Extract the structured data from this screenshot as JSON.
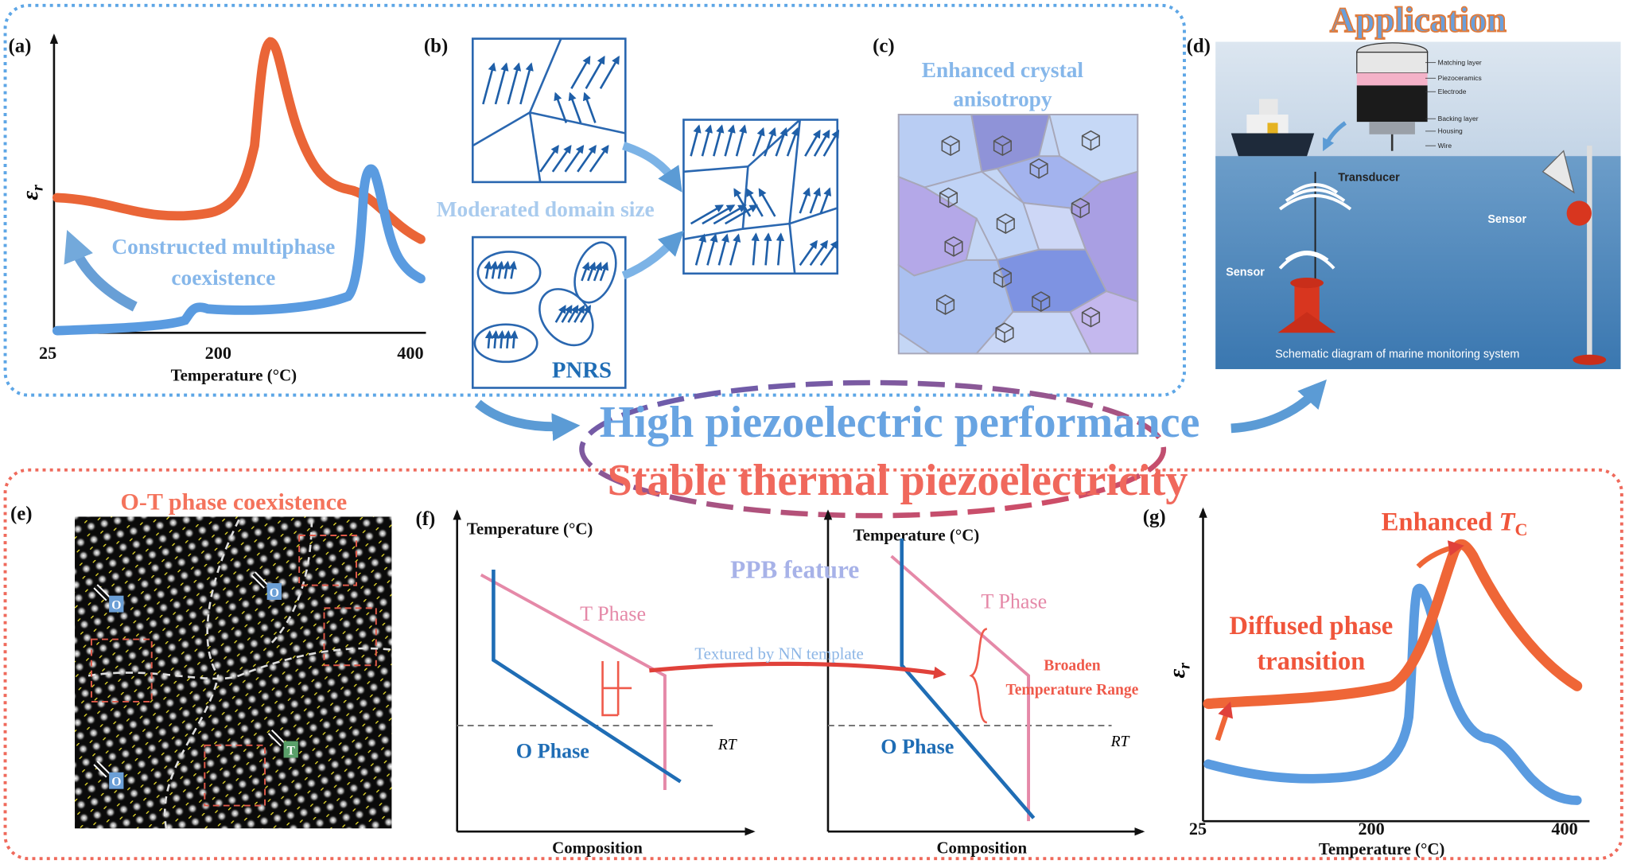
{
  "panels": {
    "a": {
      "label": "(a)",
      "y_axis": {
        "symbol": "ε",
        "subscript": "r"
      },
      "x_ticks": [
        "25",
        "200",
        "400"
      ],
      "x_axis_label": "Temperature (°C)",
      "annotation": [
        "Constructed multiphase",
        "coexistence"
      ]
    },
    "b": {
      "label": "(b)",
      "caption": "Moderated domain size",
      "region_label": "PNRS"
    },
    "c": {
      "label": "(c)",
      "caption": [
        "Enhanced crystal",
        "anisotropy"
      ]
    },
    "d": {
      "label": "(d)",
      "title": "Application",
      "transducer_layers": [
        "Matching layer",
        "Piezoceramics",
        "Electrode",
        "Backing layer",
        "Housing",
        "Wire"
      ],
      "callouts": [
        "Transducer",
        "Sensor",
        "Sensor"
      ],
      "caption": "Schematic diagram of marine monitoring system"
    },
    "e": {
      "label": "(e)",
      "title": "O-T phase coexistence",
      "markers": [
        "O",
        "O",
        "O",
        "T"
      ]
    },
    "f": {
      "label": "(f)",
      "feature": "PPB feature",
      "left": {
        "y_axis_label": "Temperature (°C)",
        "x_axis_label": "Composition",
        "upper_phase": "T Phase",
        "lower_phase": "O Phase",
        "reference": "RT"
      },
      "right": {
        "y_axis_label": "Temperature (°C)",
        "x_axis_label": "Composition",
        "upper_phase": "T Phase",
        "lower_phase": "O Phase",
        "reference": "RT"
      },
      "transition": "Textured by NN template",
      "range_note": [
        "Broaden",
        "Temperature Range"
      ]
    },
    "g": {
      "label": "(g)",
      "y_axis": {
        "symbol": "ε",
        "subscript": "r"
      },
      "x_ticks": [
        "25",
        "200",
        "400"
      ],
      "x_axis_label": "Temperature (°C)",
      "peak_note": {
        "prefix": "Enhanced",
        "symbol": "T",
        "subscript": "C"
      },
      "annotation": [
        "Diffused phase",
        "transition"
      ]
    }
  },
  "center": {
    "line1": "High piezoelectric performance",
    "line2": "Stable thermal piezoelectricity"
  }
}
